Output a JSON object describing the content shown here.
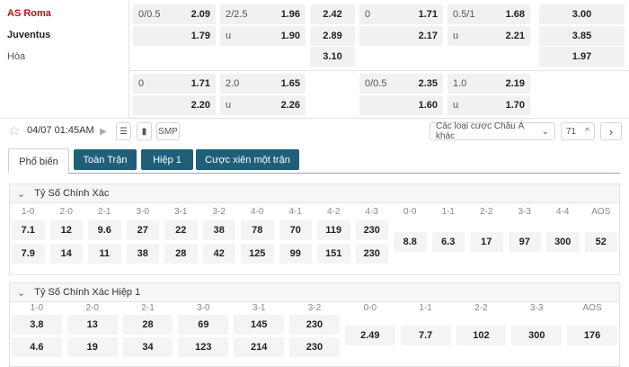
{
  "teams": {
    "home": "AS Roma",
    "away": "Juventus",
    "draw": "Hòa"
  },
  "colors": {
    "home": "#b3121b",
    "tab": "#1f5f7a"
  },
  "odds_top": [
    [
      {
        "h": "0/0.5",
        "o": "2.09"
      },
      {
        "h": "2/2.5",
        "o": "1.96"
      },
      {
        "h": "",
        "o": "2.42"
      },
      {
        "h": "0",
        "o": "1.71"
      },
      {
        "h": "0.5/1",
        "o": "1.68"
      },
      {
        "h": "",
        "o": "3.00"
      }
    ],
    [
      {
        "h": "",
        "o": "1.79"
      },
      {
        "h": "u",
        "o": "1.90"
      },
      {
        "h": "",
        "o": "2.89"
      },
      {
        "h": "",
        "o": "2.17"
      },
      {
        "h": "u",
        "o": "2.21"
      },
      {
        "h": "",
        "o": "3.85"
      }
    ],
    [
      {
        "h": "",
        "o": ""
      },
      {
        "h": "",
        "o": ""
      },
      {
        "h": "",
        "o": "3.10"
      },
      {
        "h": "",
        "o": ""
      },
      {
        "h": "",
        "o": ""
      },
      {
        "h": "",
        "o": "1.97"
      }
    ]
  ],
  "odds_bottom": [
    [
      {
        "h": "0",
        "o": "1.71"
      },
      {
        "h": "2.0",
        "o": "1.65"
      },
      {
        "h": "0/0.5",
        "o": "2.35"
      },
      {
        "h": "1.0",
        "o": "2.19"
      }
    ],
    [
      {
        "h": "",
        "o": "2.20"
      },
      {
        "h": "u",
        "o": "2.26"
      },
      {
        "h": "",
        "o": "1.60"
      },
      {
        "h": "u",
        "o": "1.70"
      }
    ]
  ],
  "toolbar": {
    "datetime": "04/07 01:45AM",
    "smp": "SMP",
    "dropdown": "Các loại cược Châu Á khác",
    "count": "71"
  },
  "tabs": [
    "Phổ biến",
    "Toàn Trận",
    "Hiệp 1",
    "Cược xiên một trận"
  ],
  "section1": {
    "title": "Tỷ Số Chính Xác",
    "labels": [
      "1-0",
      "2-0",
      "2-1",
      "3-0",
      "3-1",
      "3-2",
      "4-0",
      "4-1",
      "4-2",
      "4-3",
      "0-0",
      "1-1",
      "2-2",
      "3-3",
      "4-4",
      "AOS"
    ],
    "home": [
      "7.1",
      "12",
      "9.6",
      "27",
      "22",
      "38",
      "78",
      "70",
      "119",
      "230"
    ],
    "away": [
      "7.9",
      "14",
      "11",
      "38",
      "28",
      "42",
      "125",
      "99",
      "151",
      "230"
    ],
    "draw": [
      "8.8",
      "6.3",
      "17",
      "97",
      "300",
      "52"
    ]
  },
  "section2": {
    "title": "Tỷ Số Chính Xác Hiệp 1",
    "labels": [
      "1-0",
      "2-0",
      "2-1",
      "3-0",
      "3-1",
      "3-2",
      "0-0",
      "1-1",
      "2-2",
      "3-3",
      "AOS"
    ],
    "home": [
      "3.8",
      "13",
      "28",
      "69",
      "145",
      "230"
    ],
    "away": [
      "4.6",
      "19",
      "34",
      "123",
      "214",
      "230"
    ],
    "draw": [
      "2.49",
      "7.7",
      "102",
      "300",
      "176"
    ]
  }
}
